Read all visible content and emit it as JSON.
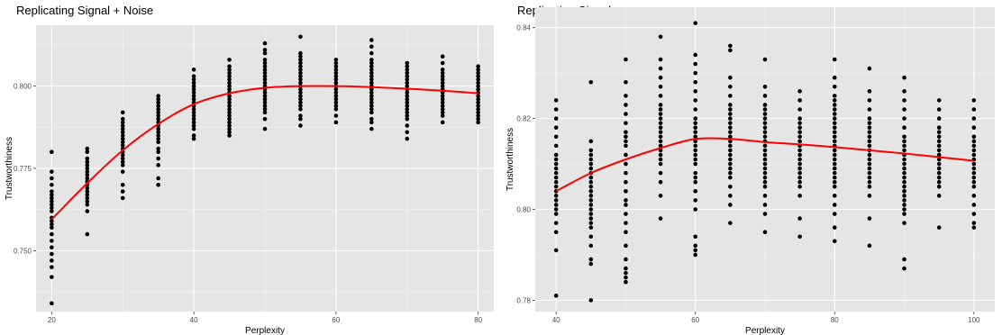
{
  "chart_data": [
    {
      "type": "scatter",
      "title": "Replicating Signal + Noise",
      "xlabel": "Perplexity",
      "ylabel": "Trustworthiness",
      "xlim": [
        17.8,
        82.2
      ],
      "ylim": [
        0.7315,
        0.8185
      ],
      "x_ticks": [
        20,
        40,
        60,
        80
      ],
      "x_tick_labels": [
        "20",
        "40",
        "60",
        "80"
      ],
      "y_ticks": [
        0.75,
        0.775,
        0.8
      ],
      "y_tick_labels": [
        "0.750",
        "0.775",
        "0.800"
      ],
      "grid": true,
      "background": "#e5e5e5",
      "point_color": "#000000",
      "trend_color": "#ff0000",
      "point_columns": [
        {
          "x": 20,
          "values": [
            0.734,
            0.742,
            0.745,
            0.747,
            0.749,
            0.751,
            0.753,
            0.755,
            0.757,
            0.758,
            0.759,
            0.76,
            0.762,
            0.763,
            0.764,
            0.765,
            0.766,
            0.767,
            0.768,
            0.77,
            0.772,
            0.774,
            0.78
          ]
        },
        {
          "x": 25,
          "values": [
            0.755,
            0.762,
            0.764,
            0.765,
            0.766,
            0.767,
            0.768,
            0.769,
            0.77,
            0.771,
            0.772,
            0.773,
            0.774,
            0.775,
            0.776,
            0.777,
            0.778,
            0.78,
            0.781
          ]
        },
        {
          "x": 30,
          "values": [
            0.766,
            0.768,
            0.77,
            0.774,
            0.776,
            0.777,
            0.778,
            0.779,
            0.78,
            0.781,
            0.782,
            0.783,
            0.784,
            0.785,
            0.786,
            0.787,
            0.788,
            0.789,
            0.79,
            0.792
          ]
        },
        {
          "x": 35,
          "values": [
            0.77,
            0.772,
            0.776,
            0.778,
            0.78,
            0.781,
            0.783,
            0.784,
            0.785,
            0.786,
            0.787,
            0.788,
            0.789,
            0.79,
            0.791,
            0.792,
            0.793,
            0.794,
            0.795,
            0.796,
            0.797
          ]
        },
        {
          "x": 40,
          "values": [
            0.784,
            0.785,
            0.787,
            0.788,
            0.789,
            0.79,
            0.791,
            0.792,
            0.793,
            0.794,
            0.795,
            0.796,
            0.797,
            0.798,
            0.799,
            0.8,
            0.801,
            0.802,
            0.803,
            0.805
          ]
        },
        {
          "x": 45,
          "values": [
            0.785,
            0.786,
            0.787,
            0.788,
            0.789,
            0.79,
            0.791,
            0.792,
            0.793,
            0.794,
            0.795,
            0.796,
            0.797,
            0.798,
            0.799,
            0.8,
            0.801,
            0.802,
            0.803,
            0.804,
            0.805,
            0.806,
            0.808
          ]
        },
        {
          "x": 50,
          "values": [
            0.787,
            0.79,
            0.792,
            0.793,
            0.794,
            0.795,
            0.796,
            0.797,
            0.798,
            0.799,
            0.8,
            0.801,
            0.802,
            0.803,
            0.804,
            0.805,
            0.806,
            0.807,
            0.808,
            0.81,
            0.811,
            0.813
          ]
        },
        {
          "x": 55,
          "values": [
            0.788,
            0.79,
            0.791,
            0.793,
            0.794,
            0.795,
            0.796,
            0.797,
            0.798,
            0.799,
            0.8,
            0.801,
            0.802,
            0.803,
            0.804,
            0.805,
            0.806,
            0.807,
            0.808,
            0.809,
            0.81,
            0.815
          ]
        },
        {
          "x": 60,
          "values": [
            0.789,
            0.791,
            0.793,
            0.794,
            0.795,
            0.796,
            0.797,
            0.798,
            0.799,
            0.8,
            0.801,
            0.802,
            0.803,
            0.804,
            0.805,
            0.806,
            0.807,
            0.808
          ]
        },
        {
          "x": 65,
          "values": [
            0.787,
            0.789,
            0.79,
            0.792,
            0.793,
            0.794,
            0.795,
            0.796,
            0.797,
            0.798,
            0.799,
            0.8,
            0.801,
            0.802,
            0.803,
            0.804,
            0.805,
            0.806,
            0.807,
            0.808,
            0.81,
            0.812,
            0.814
          ]
        },
        {
          "x": 70,
          "values": [
            0.784,
            0.786,
            0.788,
            0.79,
            0.791,
            0.792,
            0.793,
            0.794,
            0.795,
            0.796,
            0.797,
            0.798,
            0.799,
            0.8,
            0.801,
            0.802,
            0.803,
            0.804,
            0.805,
            0.806,
            0.807
          ]
        },
        {
          "x": 75,
          "values": [
            0.789,
            0.791,
            0.792,
            0.793,
            0.794,
            0.795,
            0.796,
            0.797,
            0.798,
            0.799,
            0.8,
            0.801,
            0.802,
            0.803,
            0.804,
            0.805,
            0.807,
            0.809
          ]
        },
        {
          "x": 80,
          "values": [
            0.789,
            0.79,
            0.791,
            0.792,
            0.793,
            0.794,
            0.795,
            0.796,
            0.797,
            0.798,
            0.799,
            0.8,
            0.801,
            0.802,
            0.803,
            0.804,
            0.805,
            0.806
          ]
        }
      ],
      "trend": {
        "x": [
          20,
          25,
          30,
          35,
          40,
          45,
          50,
          55,
          60,
          65,
          70,
          75,
          80
        ],
        "y": [
          0.7595,
          0.7705,
          0.7805,
          0.7885,
          0.7945,
          0.7978,
          0.7995,
          0.8,
          0.8,
          0.7997,
          0.7992,
          0.7986,
          0.7978
        ]
      }
    },
    {
      "type": "scatter",
      "title": "Replicating Signal",
      "xlabel": "Perplexity",
      "ylabel": "Trustworthiness",
      "xlim": [
        37,
        103
      ],
      "ylim": [
        0.7775,
        0.8445
      ],
      "x_ticks": [
        40,
        60,
        80,
        100
      ],
      "x_tick_labels": [
        "40",
        "60",
        "80",
        "100"
      ],
      "y_ticks": [
        0.78,
        0.8,
        0.82,
        0.84
      ],
      "y_tick_labels": [
        "0.78",
        "0.80",
        "0.82",
        "0.84"
      ],
      "grid": true,
      "background": "#e5e5e5",
      "point_color": "#000000",
      "trend_color": "#ff0000",
      "point_columns": [
        {
          "x": 40,
          "values": [
            0.781,
            0.791,
            0.795,
            0.797,
            0.799,
            0.8,
            0.801,
            0.802,
            0.803,
            0.804,
            0.805,
            0.806,
            0.807,
            0.808,
            0.809,
            0.81,
            0.811,
            0.812,
            0.814,
            0.816,
            0.818,
            0.82,
            0.822,
            0.824
          ]
        },
        {
          "x": 45,
          "values": [
            0.78,
            0.788,
            0.789,
            0.792,
            0.794,
            0.796,
            0.797,
            0.798,
            0.799,
            0.8,
            0.801,
            0.802,
            0.803,
            0.804,
            0.805,
            0.806,
            0.807,
            0.808,
            0.809,
            0.81,
            0.811,
            0.812,
            0.813,
            0.815,
            0.828
          ]
        },
        {
          "x": 50,
          "values": [
            0.784,
            0.785,
            0.786,
            0.787,
            0.789,
            0.792,
            0.795,
            0.797,
            0.799,
            0.801,
            0.802,
            0.804,
            0.806,
            0.808,
            0.81,
            0.812,
            0.814,
            0.815,
            0.816,
            0.817,
            0.819,
            0.821,
            0.823,
            0.825,
            0.828,
            0.833
          ]
        },
        {
          "x": 55,
          "values": [
            0.798,
            0.803,
            0.806,
            0.808,
            0.81,
            0.811,
            0.812,
            0.813,
            0.814,
            0.815,
            0.816,
            0.817,
            0.818,
            0.819,
            0.82,
            0.821,
            0.822,
            0.823,
            0.825,
            0.827,
            0.829,
            0.831,
            0.833,
            0.838
          ]
        },
        {
          "x": 60,
          "values": [
            0.79,
            0.791,
            0.792,
            0.794,
            0.8,
            0.802,
            0.804,
            0.806,
            0.807,
            0.808,
            0.81,
            0.811,
            0.812,
            0.813,
            0.814,
            0.815,
            0.816,
            0.817,
            0.818,
            0.819,
            0.82,
            0.822,
            0.824,
            0.826,
            0.828,
            0.83,
            0.832,
            0.834,
            0.841
          ]
        },
        {
          "x": 65,
          "values": [
            0.797,
            0.801,
            0.803,
            0.805,
            0.807,
            0.808,
            0.809,
            0.81,
            0.811,
            0.812,
            0.813,
            0.814,
            0.815,
            0.816,
            0.817,
            0.818,
            0.819,
            0.82,
            0.821,
            0.822,
            0.823,
            0.825,
            0.827,
            0.829,
            0.835,
            0.836
          ]
        },
        {
          "x": 70,
          "values": [
            0.795,
            0.799,
            0.801,
            0.803,
            0.805,
            0.806,
            0.807,
            0.808,
            0.809,
            0.81,
            0.811,
            0.812,
            0.813,
            0.814,
            0.815,
            0.816,
            0.817,
            0.818,
            0.819,
            0.82,
            0.821,
            0.822,
            0.823,
            0.825,
            0.827,
            0.833
          ]
        },
        {
          "x": 75,
          "values": [
            0.794,
            0.798,
            0.803,
            0.805,
            0.806,
            0.807,
            0.808,
            0.809,
            0.81,
            0.811,
            0.812,
            0.813,
            0.814,
            0.815,
            0.816,
            0.817,
            0.818,
            0.819,
            0.82,
            0.822,
            0.824,
            0.826
          ]
        },
        {
          "x": 80,
          "values": [
            0.793,
            0.796,
            0.799,
            0.801,
            0.803,
            0.805,
            0.806,
            0.807,
            0.808,
            0.809,
            0.81,
            0.811,
            0.812,
            0.813,
            0.814,
            0.815,
            0.816,
            0.817,
            0.818,
            0.819,
            0.82,
            0.821,
            0.822,
            0.823,
            0.824,
            0.825,
            0.827,
            0.829,
            0.833
          ]
        },
        {
          "x": 85,
          "values": [
            0.792,
            0.798,
            0.803,
            0.805,
            0.806,
            0.807,
            0.808,
            0.809,
            0.81,
            0.811,
            0.812,
            0.813,
            0.814,
            0.815,
            0.816,
            0.817,
            0.818,
            0.819,
            0.82,
            0.822,
            0.824,
            0.826,
            0.831
          ]
        },
        {
          "x": 90,
          "values": [
            0.787,
            0.789,
            0.797,
            0.799,
            0.8,
            0.801,
            0.802,
            0.803,
            0.804,
            0.805,
            0.806,
            0.807,
            0.808,
            0.809,
            0.81,
            0.811,
            0.812,
            0.813,
            0.814,
            0.815,
            0.816,
            0.818,
            0.82,
            0.822,
            0.824,
            0.826,
            0.829
          ]
        },
        {
          "x": 95,
          "values": [
            0.796,
            0.803,
            0.805,
            0.806,
            0.807,
            0.808,
            0.809,
            0.81,
            0.811,
            0.812,
            0.813,
            0.814,
            0.815,
            0.816,
            0.817,
            0.818,
            0.82,
            0.822,
            0.824
          ]
        },
        {
          "x": 100,
          "values": [
            0.796,
            0.797,
            0.799,
            0.801,
            0.803,
            0.805,
            0.806,
            0.807,
            0.808,
            0.809,
            0.81,
            0.811,
            0.812,
            0.813,
            0.814,
            0.815,
            0.816,
            0.818,
            0.82,
            0.822,
            0.824
          ]
        }
      ],
      "trend": {
        "x": [
          40,
          45,
          50,
          55,
          60,
          65,
          70,
          75,
          80,
          85,
          90,
          95,
          100
        ],
        "y": [
          0.804,
          0.808,
          0.811,
          0.8135,
          0.8155,
          0.8155,
          0.8148,
          0.8143,
          0.8137,
          0.813,
          0.8123,
          0.8115,
          0.8107
        ]
      }
    }
  ]
}
